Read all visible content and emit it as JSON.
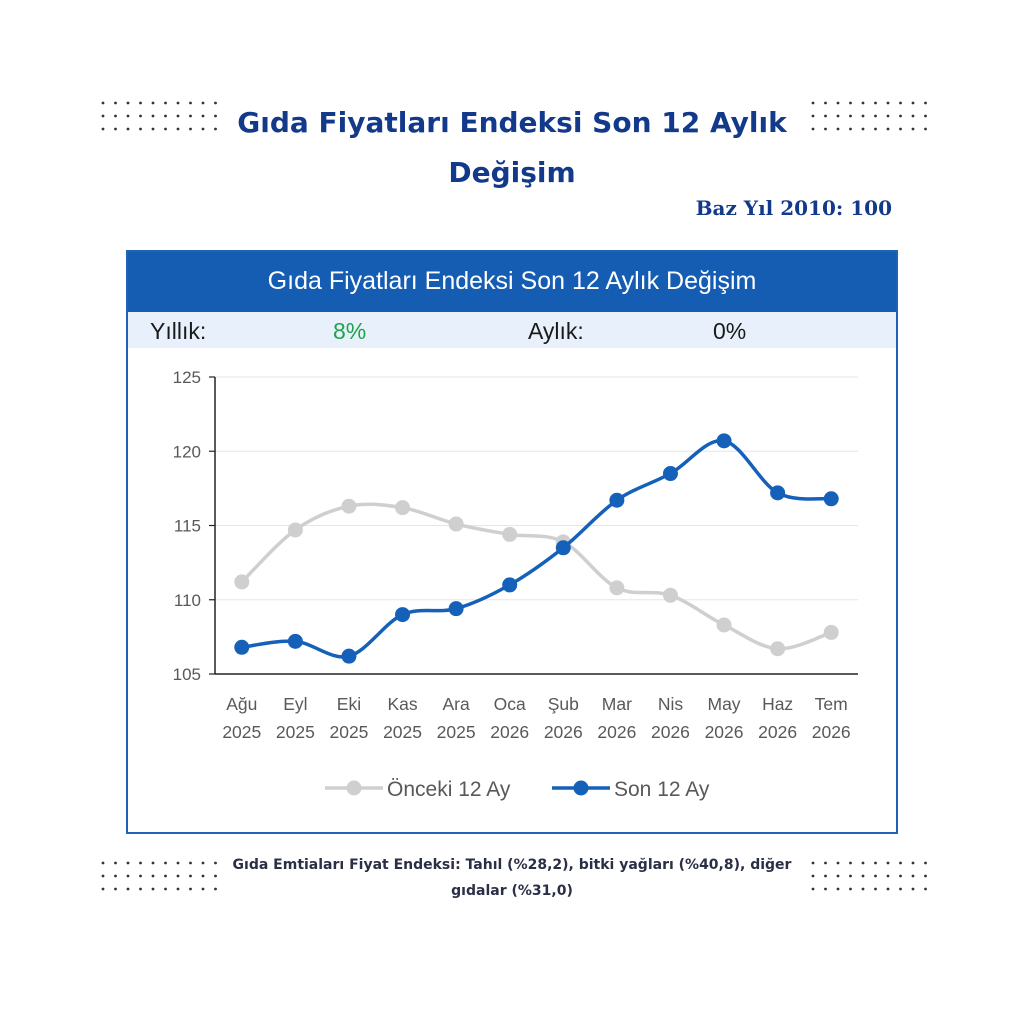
{
  "header": {
    "title": "Gıda Fiyatları Endeksi Son 12 Aylık Değişim",
    "base_year": "Baz Yıl 2010: 100"
  },
  "card": {
    "title": "Gıda Fiyatları Endeksi Son 12 Aylık Değişim",
    "stats": {
      "yearly_label": "Yıllık:",
      "yearly_value": "8%",
      "monthly_label": "Aylık:",
      "monthly_value": "0%"
    }
  },
  "footnote": "Gıda Emtiaları Fiyat Endeksi: Tahıl (%28,2), bitki yağları (%40,8), diğer gıdalar (%31,0)",
  "colors": {
    "brand_blue": "#133a8a",
    "header_blue": "#155cb3",
    "series_current": "#1560b8",
    "series_previous": "#cfcfcf",
    "positive": "#1fa34a"
  },
  "chart_data": {
    "type": "line",
    "title": "Gıda Fiyatları Endeksi Son 12 Aylık Değişim",
    "categories": [
      [
        "Ağu",
        "2025"
      ],
      [
        "Eyl",
        "2025"
      ],
      [
        "Eki",
        "2025"
      ],
      [
        "Kas",
        "2025"
      ],
      [
        "Ara",
        "2025"
      ],
      [
        "Oca",
        "2026"
      ],
      [
        "Şub",
        "2026"
      ],
      [
        "Mar",
        "2026"
      ],
      [
        "Nis",
        "2026"
      ],
      [
        "May",
        "2026"
      ],
      [
        "Haz",
        "2026"
      ],
      [
        "Tem",
        "2026"
      ]
    ],
    "series": [
      {
        "name": "Önceki 12 Ay",
        "color": "#cfcfcf",
        "values": [
          111.2,
          114.7,
          116.3,
          116.2,
          115.1,
          114.4,
          113.9,
          110.8,
          110.3,
          108.3,
          106.7,
          107.8
        ]
      },
      {
        "name": "Son 12 Ay",
        "color": "#1560b8",
        "values": [
          106.8,
          107.2,
          106.2,
          109.0,
          109.4,
          111.0,
          113.5,
          116.7,
          118.5,
          120.7,
          117.2,
          116.8
        ]
      }
    ],
    "ylim": [
      105,
      125
    ],
    "yticks": [
      105,
      110,
      115,
      120,
      125
    ],
    "grid": true,
    "legend": "bottom"
  }
}
